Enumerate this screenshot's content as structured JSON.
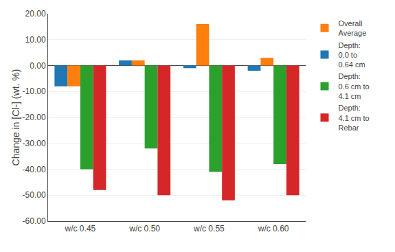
{
  "chart_data": {
    "type": "bar",
    "ylabel": "Change in [Cl-] (wt. %)",
    "categories": [
      "w/c 0.45",
      "w/c 0.50",
      "w/c 0.55",
      "w/c 0.60"
    ],
    "series": [
      {
        "name": "Depth:\n0.0 to\n0.64 cm",
        "values": [
          -8,
          2,
          -1,
          -2
        ]
      },
      {
        "name": "Overall\nAverage",
        "values": [
          -8,
          2,
          16,
          3
        ]
      },
      {
        "name": "Depth:\n0.6 cm to\n4.1 cm",
        "values": [
          -40,
          -32,
          -41,
          -38
        ]
      },
      {
        "name": "Depth:\n4.1 cm to\nRebar",
        "values": [
          -48,
          -50,
          -52,
          -50
        ]
      }
    ],
    "ylim": [
      -60,
      20
    ],
    "yticks": [
      {
        "value": 20,
        "label": "20.00"
      },
      {
        "value": 10,
        "label": "10.00"
      },
      {
        "value": 0,
        "label": "0.00"
      },
      {
        "value": -10,
        "label": "-10.00"
      },
      {
        "value": -20,
        "label": "-20.00"
      },
      {
        "value": -30,
        "label": "-30.00"
      },
      {
        "value": -40,
        "label": "-40.00"
      },
      {
        "value": -50,
        "label": "-50.00"
      },
      {
        "value": -60,
        "label": "-60.00"
      }
    ],
    "grid": true,
    "legend": "right"
  }
}
